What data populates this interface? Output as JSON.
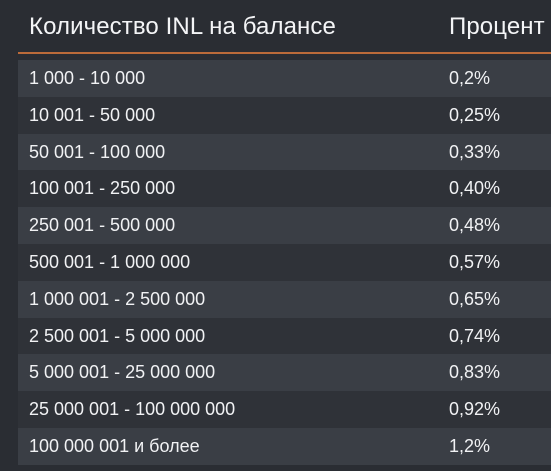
{
  "table": {
    "header": {
      "amount": "Количество INL на балансе",
      "percent": "Процент"
    },
    "rows": [
      {
        "amount": "1 000 - 10 000",
        "percent": "0,2%"
      },
      {
        "amount": "10 001 - 50 000",
        "percent": "0,25%"
      },
      {
        "amount": "50 001 - 100 000",
        "percent": "0,33%"
      },
      {
        "amount": "100 001 - 250 000",
        "percent": "0,40%"
      },
      {
        "amount": "250 001 - 500 000",
        "percent": "0,48%"
      },
      {
        "amount": "500 001 - 1 000 000",
        "percent": "0,57%"
      },
      {
        "amount": "1 000 001 - 2 500 000",
        "percent": "0,65%"
      },
      {
        "amount": "2 500 001 - 5 000 000",
        "percent": "0,74%"
      },
      {
        "amount": "5 000 001 - 25 000 000",
        "percent": "0,83%"
      },
      {
        "amount": "25 000 001 - 100 000 000",
        "percent": "0,92%"
      },
      {
        "amount": "100 000 001 и более",
        "percent": "1,2%"
      }
    ]
  },
  "colors": {
    "background": "#2a2d33",
    "row_alt": "#3a3e45",
    "row_base": "#2f3238",
    "accent": "#c46f3b",
    "text": "#f1f2f4"
  }
}
